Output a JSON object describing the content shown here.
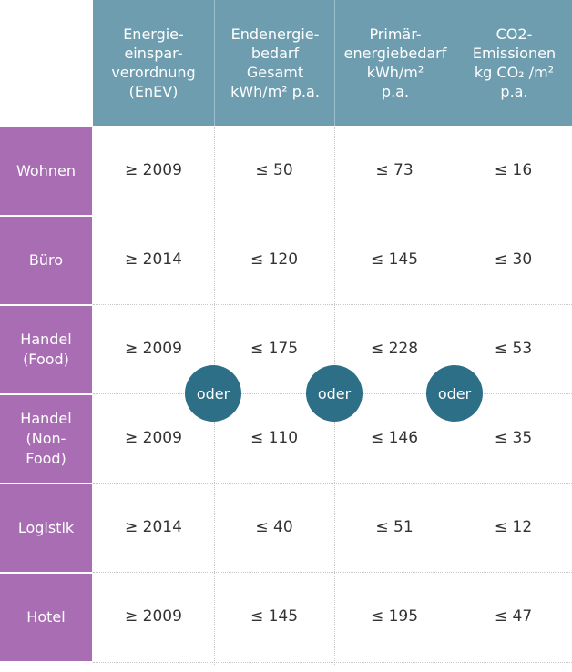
{
  "headers": [
    {
      "lines": [
        "Energie-",
        "einspar-",
        "verordnung",
        "(EnEV)"
      ]
    },
    {
      "lines": [
        "Endenergie-",
        "bedarf",
        "Gesamt",
        "kWh/m² p.a."
      ]
    },
    {
      "lines": [
        "Primär-",
        "energiebedarf",
        "kWh/m²",
        "p.a."
      ]
    },
    {
      "lines": [
        "CO2-",
        "Emissionen",
        "kg CO₂ /m²",
        "p.a."
      ]
    }
  ],
  "rows": [
    {
      "label": [
        "Wohnen"
      ],
      "values": [
        "≥ 2009",
        "≤ 50",
        "≤ 73",
        "≤ 16"
      ]
    },
    {
      "label": [
        "Büro"
      ],
      "values": [
        "≥ 2014",
        "≤ 120",
        "≤ 145",
        "≤ 30"
      ]
    },
    {
      "label": [
        "Handel",
        "(Food)"
      ],
      "values": [
        "≥ 2009",
        "≤ 175",
        "≤ 228",
        "≤ 53"
      ]
    },
    {
      "label": [
        "Handel",
        "(Non-",
        "Food)"
      ],
      "values": [
        "≥ 2009",
        "≤ 110",
        "≤ 146",
        "≤ 35"
      ]
    },
    {
      "label": [
        "Logistik"
      ],
      "values": [
        "≥ 2014",
        "≤ 40",
        "≤ 51",
        "≤ 12"
      ]
    },
    {
      "label": [
        "Hotel"
      ],
      "values": [
        "≥ 2009",
        "≤ 145",
        "≤ 195",
        "≤ 47"
      ]
    }
  ],
  "connector_label": "oder",
  "colors": {
    "header": "#6e9db0",
    "row_label": "#a86db3",
    "connector": "#2e6f88"
  }
}
